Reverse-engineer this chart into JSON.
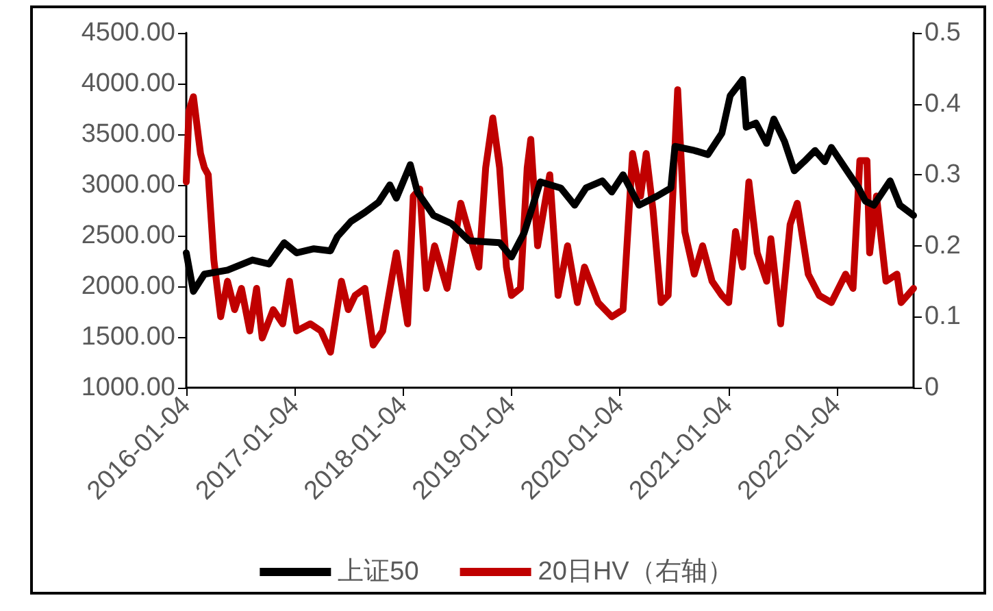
{
  "chart_data": {
    "type": "line",
    "xlim": [
      "2016-01-04",
      "2022-09-20"
    ],
    "xticks": [
      "2016-01-04",
      "2017-01-04",
      "2018-01-04",
      "2019-01-04",
      "2020-01-04",
      "2021-01-04",
      "2022-01-04"
    ],
    "ylim": [
      1000,
      4500
    ],
    "yticks": [
      {
        "value": 1000,
        "label": "1000.00"
      },
      {
        "value": 1500,
        "label": "1500.00"
      },
      {
        "value": 2000,
        "label": "2000.00"
      },
      {
        "value": 2500,
        "label": "2500.00"
      },
      {
        "value": 3000,
        "label": "3000.00"
      },
      {
        "value": 3500,
        "label": "3500.00"
      },
      {
        "value": 4000,
        "label": "4000.00"
      },
      {
        "value": 4500,
        "label": "4500.00"
      }
    ],
    "y2lim": [
      0,
      0.5
    ],
    "y2ticks": [
      0,
      0.1,
      0.2,
      0.3,
      0.4,
      0.5
    ],
    "grid": false,
    "legend": "bottom",
    "marker": "none",
    "line_style": "solid",
    "series": [
      {
        "name": "上证50",
        "color": "#000000",
        "x": [
          "2016-01-04",
          "2016-01-28",
          "2016-03-05",
          "2016-05-22",
          "2016-08-14",
          "2016-10-09",
          "2016-11-29",
          "2017-01-10",
          "2017-03-09",
          "2017-05-04",
          "2017-05-27",
          "2017-07-12",
          "2017-08-28",
          "2017-10-13",
          "2017-11-20",
          "2017-12-12",
          "2018-01-28",
          "2018-02-21",
          "2018-04-16",
          "2018-06-15",
          "2018-08-14",
          "2018-11-25",
          "2019-01-04",
          "2019-02-16",
          "2019-04-11",
          "2019-06-19",
          "2019-08-05",
          "2019-09-12",
          "2019-11-06",
          "2019-12-08",
          "2020-01-15",
          "2020-03-09",
          "2020-05-09",
          "2020-06-24",
          "2020-07-08",
          "2020-09-11",
          "2020-10-27",
          "2020-12-13",
          "2021-01-10",
          "2021-02-21",
          "2021-03-05",
          "2021-04-07",
          "2021-05-13",
          "2021-06-06",
          "2021-07-12",
          "2021-08-14",
          "2021-09-16",
          "2021-10-23",
          "2021-11-25",
          "2021-12-17",
          "2022-02-03",
          "2022-03-19",
          "2022-04-11",
          "2022-05-09",
          "2022-07-03",
          "2022-08-05",
          "2022-09-20"
        ],
        "values": [
          2330,
          1950,
          2120,
          2160,
          2260,
          2220,
          2430,
          2330,
          2370,
          2350,
          2490,
          2640,
          2730,
          2830,
          3000,
          2870,
          3200,
          2930,
          2700,
          2620,
          2450,
          2430,
          2290,
          2530,
          3030,
          2970,
          2800,
          2970,
          3040,
          2930,
          3100,
          2800,
          2890,
          2970,
          3380,
          3340,
          3300,
          3510,
          3880,
          4040,
          3570,
          3610,
          3410,
          3650,
          3430,
          3140,
          3230,
          3340,
          3230,
          3370,
          3160,
          2970,
          2840,
          2800,
          3040,
          2800,
          2700
        ]
      },
      {
        "name": "20日HV（右轴）",
        "color": "#c00000",
        "axis": "y2",
        "x": [
          "2016-01-04",
          "2016-01-13",
          "2016-01-28",
          "2016-02-21",
          "2016-03-05",
          "2016-03-18",
          "2016-04-06",
          "2016-04-29",
          "2016-05-22",
          "2016-06-15",
          "2016-07-08",
          "2016-08-05",
          "2016-08-28",
          "2016-09-16",
          "2016-10-23",
          "2016-11-24",
          "2016-12-17",
          "2017-01-10",
          "2017-02-25",
          "2017-04-02",
          "2017-05-04",
          "2017-06-10",
          "2017-07-03",
          "2017-07-26",
          "2017-08-28",
          "2017-09-25",
          "2017-10-27",
          "2017-11-29",
          "2017-12-12",
          "2018-01-19",
          "2018-02-07",
          "2018-03-01",
          "2018-03-23",
          "2018-04-20",
          "2018-06-01",
          "2018-07-17",
          "2018-09-16",
          "2018-10-09",
          "2018-11-02",
          "2018-11-25",
          "2018-12-18",
          "2019-01-04",
          "2019-02-03",
          "2019-02-26",
          "2019-03-10",
          "2019-04-02",
          "2019-05-13",
          "2019-06-10",
          "2019-07-12",
          "2019-08-14",
          "2019-09-07",
          "2019-10-23",
          "2019-12-08",
          "2020-01-15",
          "2020-02-16",
          "2020-03-14",
          "2020-04-02",
          "2020-04-25",
          "2020-05-22",
          "2020-06-15",
          "2020-07-17",
          "2020-08-10",
          "2020-09-11",
          "2020-10-09",
          "2020-11-10",
          "2020-12-13",
          "2021-01-05",
          "2021-01-28",
          "2021-02-21",
          "2021-03-14",
          "2021-04-11",
          "2021-05-13",
          "2021-05-27",
          "2021-06-29",
          "2021-07-31",
          "2021-08-24",
          "2021-09-30",
          "2021-11-06",
          "2021-12-17",
          "2022-02-03",
          "2022-02-28",
          "2022-03-23",
          "2022-04-16",
          "2022-04-25",
          "2022-05-18",
          "2022-06-19",
          "2022-07-26",
          "2022-08-09",
          "2022-09-20"
        ],
        "values": [
          0.29,
          0.39,
          0.41,
          0.33,
          0.31,
          0.3,
          0.18,
          0.1,
          0.15,
          0.11,
          0.14,
          0.08,
          0.14,
          0.07,
          0.11,
          0.09,
          0.15,
          0.08,
          0.09,
          0.08,
          0.05,
          0.15,
          0.11,
          0.13,
          0.14,
          0.06,
          0.08,
          0.16,
          0.19,
          0.09,
          0.27,
          0.28,
          0.14,
          0.2,
          0.14,
          0.26,
          0.17,
          0.31,
          0.38,
          0.31,
          0.17,
          0.13,
          0.14,
          0.31,
          0.35,
          0.2,
          0.3,
          0.13,
          0.2,
          0.12,
          0.17,
          0.12,
          0.1,
          0.11,
          0.33,
          0.27,
          0.33,
          0.25,
          0.12,
          0.13,
          0.42,
          0.22,
          0.16,
          0.2,
          0.15,
          0.13,
          0.12,
          0.22,
          0.17,
          0.29,
          0.19,
          0.15,
          0.21,
          0.09,
          0.23,
          0.26,
          0.16,
          0.13,
          0.12,
          0.16,
          0.14,
          0.32,
          0.32,
          0.19,
          0.27,
          0.15,
          0.16,
          0.12,
          0.14
        ]
      }
    ]
  }
}
